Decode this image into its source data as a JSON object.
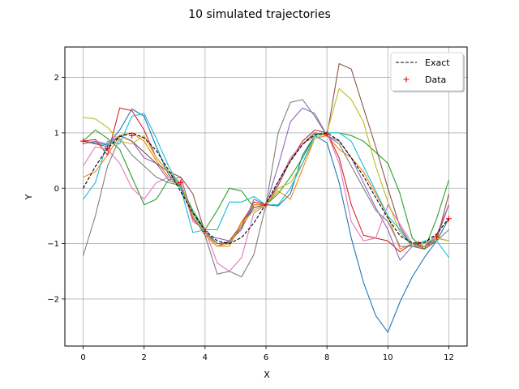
{
  "chart_data": {
    "type": "line",
    "title": "10 simulated trajectories",
    "xlabel": "X",
    "ylabel": "Y",
    "xlim": [
      -0.6,
      12.6
    ],
    "ylim": [
      -2.85,
      2.55
    ],
    "xticks": [
      0,
      2,
      4,
      6,
      8,
      10,
      12
    ],
    "yticks": [
      -2,
      -1,
      0,
      1,
      2
    ],
    "ytick_labels": [
      "−2",
      "−1",
      "0",
      "1",
      "2"
    ],
    "grid": true,
    "legend_position": "top-right",
    "legend": [
      {
        "label": "Exact",
        "style": "dashed-line",
        "color": "#000000"
      },
      {
        "label": "Data",
        "style": "plus-marker",
        "color": "#ff0000"
      }
    ],
    "exact": {
      "name": "Exact",
      "color": "#000000",
      "x": [
        0,
        0.4,
        0.8,
        1.2,
        1.6,
        2.0,
        2.4,
        2.8,
        3.2,
        3.6,
        4.0,
        4.4,
        4.8,
        5.2,
        5.6,
        6.0,
        6.4,
        6.8,
        7.2,
        7.6,
        8.0,
        8.4,
        8.8,
        9.2,
        9.6,
        10.0,
        10.4,
        10.8,
        11.2,
        11.6,
        12.0
      ],
      "y": [
        0.0,
        0.39,
        0.72,
        0.93,
        1.0,
        0.91,
        0.68,
        0.33,
        -0.06,
        -0.44,
        -0.76,
        -0.95,
        -1.0,
        -0.89,
        -0.63,
        -0.28,
        0.12,
        0.49,
        0.79,
        0.97,
        1.0,
        0.86,
        0.55,
        0.22,
        -0.17,
        -0.54,
        -0.86,
        -0.99,
        -0.98,
        -0.83,
        -0.54
      ]
    },
    "data_points": {
      "name": "Data",
      "color": "#ff0000",
      "x": [
        0,
        0.8,
        1.6,
        3.2,
        4.0,
        6.0,
        8.0,
        11.0,
        11.6,
        12.0
      ],
      "y": [
        0.85,
        0.72,
        0.95,
        0.1,
        -0.78,
        -0.3,
        0.98,
        -1.0,
        -0.88,
        -0.55
      ]
    },
    "trajectories": [
      {
        "color": "#1f77b4",
        "x": [
          0,
          0.4,
          0.8,
          1.2,
          1.6,
          2.0,
          2.4,
          2.8,
          3.2,
          3.6,
          4.0,
          4.4,
          4.8,
          5.2,
          5.6,
          6.0,
          6.4,
          6.8,
          7.2,
          7.6,
          8.0,
          8.4,
          8.8,
          9.2,
          9.6,
          10.0,
          10.4,
          10.8,
          11.2,
          11.6,
          12.0
        ],
        "y": [
          0.85,
          0.82,
          0.78,
          1.05,
          1.43,
          1.3,
          0.75,
          0.25,
          0.0,
          -0.45,
          -0.78,
          -1.0,
          -0.98,
          -0.7,
          -0.3,
          -0.3,
          -0.32,
          -0.1,
          0.6,
          0.95,
          0.82,
          0.1,
          -0.9,
          -1.7,
          -2.3,
          -2.6,
          -2.05,
          -1.6,
          -1.25,
          -0.95,
          -0.55
        ]
      },
      {
        "color": "#ff7f0e",
        "x": [
          0,
          0.4,
          0.8,
          1.2,
          1.6,
          2.0,
          2.4,
          2.8,
          3.2,
          3.6,
          4.0,
          4.4,
          4.8,
          5.2,
          5.6,
          6.0,
          6.4,
          6.8,
          7.2,
          7.6,
          8.0,
          8.4,
          8.8,
          9.2,
          9.6,
          10.0,
          10.4,
          10.8,
          11.2,
          11.6,
          12.0
        ],
        "y": [
          0.2,
          0.3,
          0.6,
          0.95,
          1.0,
          0.85,
          0.5,
          0.2,
          0.05,
          -0.5,
          -0.85,
          -1.05,
          -1.05,
          -0.6,
          -0.3,
          -0.3,
          -0.05,
          -0.2,
          0.35,
          0.9,
          0.95,
          0.7,
          0.55,
          0.3,
          -0.1,
          -0.5,
          -1.1,
          -1.0,
          -1.1,
          -0.9,
          -0.95
        ]
      },
      {
        "color": "#2ca02c",
        "x": [
          0,
          0.4,
          0.8,
          1.2,
          1.6,
          2.0,
          2.4,
          2.8,
          3.2,
          3.6,
          4.0,
          4.4,
          4.8,
          5.2,
          5.6,
          6.0,
          6.4,
          6.8,
          7.2,
          7.6,
          8.0,
          8.4,
          8.8,
          9.2,
          9.6,
          10.0,
          10.4,
          10.8,
          11.2,
          11.6,
          12.0
        ],
        "y": [
          0.85,
          1.05,
          0.9,
          0.7,
          0.2,
          -0.3,
          -0.2,
          0.15,
          0.05,
          -0.4,
          -0.75,
          -0.4,
          0.0,
          -0.05,
          -0.35,
          -0.3,
          -0.1,
          0.2,
          0.55,
          0.95,
          1.0,
          1.0,
          0.95,
          0.85,
          0.65,
          0.45,
          -0.1,
          -0.9,
          -1.1,
          -0.55,
          0.15
        ]
      },
      {
        "color": "#d62728",
        "x": [
          0,
          0.4,
          0.8,
          1.2,
          1.6,
          2.0,
          2.4,
          2.8,
          3.2,
          3.6,
          4.0,
          4.4,
          4.8,
          5.2,
          5.6,
          6.0,
          6.4,
          6.8,
          7.2,
          7.6,
          8.0,
          8.4,
          8.8,
          9.2,
          9.6,
          10.0,
          10.4,
          10.8,
          11.2,
          11.6,
          12.0
        ],
        "y": [
          0.85,
          0.88,
          0.6,
          1.45,
          1.4,
          1.05,
          0.55,
          0.3,
          0.05,
          -0.55,
          -0.8,
          -1.05,
          -0.95,
          -0.65,
          -0.25,
          -0.3,
          0.05,
          0.5,
          0.85,
          1.05,
          1.0,
          0.55,
          -0.3,
          -0.85,
          -0.9,
          -0.95,
          -1.15,
          -1.0,
          -1.05,
          -0.9,
          -0.3
        ]
      },
      {
        "color": "#9467bd",
        "x": [
          0,
          0.4,
          0.8,
          1.2,
          1.6,
          2.0,
          2.4,
          2.8,
          3.2,
          3.6,
          4.0,
          4.4,
          4.8,
          5.2,
          5.6,
          6.0,
          6.4,
          6.8,
          7.2,
          7.6,
          8.0,
          8.4,
          8.8,
          9.2,
          9.6,
          10.0,
          10.4,
          10.8,
          11.2,
          11.6,
          12.0
        ],
        "y": [
          0.8,
          0.85,
          0.8,
          0.95,
          0.85,
          0.55,
          0.45,
          0.15,
          0.2,
          -0.5,
          -0.85,
          -0.9,
          -0.95,
          -0.75,
          -0.2,
          -0.3,
          0.4,
          1.2,
          1.45,
          1.35,
          0.95,
          0.85,
          0.55,
          0.1,
          -0.35,
          -0.75,
          -1.3,
          -1.05,
          -1.05,
          -0.85,
          -0.3
        ]
      },
      {
        "color": "#8c564b",
        "x": [
          0,
          0.4,
          0.8,
          1.2,
          1.6,
          2.0,
          2.4,
          2.8,
          3.2,
          3.6,
          4.0,
          4.4,
          4.8,
          5.2,
          5.6,
          6.0,
          6.4,
          6.8,
          7.2,
          7.6,
          8.0,
          8.4,
          8.8,
          9.2,
          9.6,
          10.0,
          10.4,
          10.8,
          11.2,
          11.6,
          12.0
        ],
        "y": [
          0.85,
          0.8,
          0.75,
          0.95,
          0.85,
          0.65,
          0.45,
          0.3,
          0.2,
          -0.1,
          -0.8,
          -1.0,
          -1.0,
          -0.7,
          -0.35,
          -0.3,
          0.05,
          0.5,
          0.8,
          1.0,
          0.95,
          2.25,
          2.15,
          1.45,
          0.75,
          0.0,
          -0.7,
          -1.05,
          -1.1,
          -0.95,
          -0.1
        ]
      },
      {
        "color": "#e377c2",
        "x": [
          0,
          0.4,
          0.8,
          1.2,
          1.6,
          2.0,
          2.4,
          2.8,
          3.2,
          3.6,
          4.0,
          4.4,
          4.8,
          5.2,
          5.6,
          6.0,
          6.4,
          6.8,
          7.2,
          7.6,
          8.0,
          8.4,
          8.8,
          9.2,
          9.6,
          10.0,
          10.4,
          10.8,
          11.2,
          11.6,
          12.0
        ],
        "y": [
          0.4,
          0.75,
          0.7,
          0.45,
          0.0,
          -0.2,
          0.1,
          0.2,
          0.1,
          -0.6,
          -0.75,
          -1.35,
          -1.5,
          -1.25,
          -0.45,
          -0.3,
          0.1,
          0.55,
          0.8,
          0.95,
          1.0,
          0.45,
          -0.6,
          -0.95,
          -0.9,
          -0.3,
          -0.65,
          -1.0,
          -1.0,
          -0.9,
          -0.95
        ]
      },
      {
        "color": "#7f7f7f",
        "x": [
          0,
          0.4,
          0.8,
          1.2,
          1.6,
          2.0,
          2.4,
          2.8,
          3.2,
          3.6,
          4.0,
          4.4,
          4.8,
          5.2,
          5.6,
          6.0,
          6.4,
          6.8,
          7.2,
          7.6,
          8.0,
          8.4,
          8.8,
          9.2,
          9.6,
          10.0,
          10.4,
          10.8,
          11.2,
          11.6,
          12.0
        ],
        "y": [
          -1.22,
          -0.5,
          0.4,
          0.9,
          0.6,
          0.4,
          0.2,
          0.1,
          0.05,
          -0.5,
          -0.85,
          -1.55,
          -1.5,
          -1.6,
          -1.2,
          -0.3,
          1.0,
          1.55,
          1.6,
          1.3,
          0.95,
          0.8,
          0.4,
          0.0,
          -0.4,
          -0.6,
          -1.05,
          -1.05,
          -1.05,
          -0.95,
          -0.75
        ]
      },
      {
        "color": "#bcbd22",
        "x": [
          0,
          0.4,
          0.8,
          1.2,
          1.6,
          2.0,
          2.4,
          2.8,
          3.2,
          3.6,
          4.0,
          4.4,
          4.8,
          5.2,
          5.6,
          6.0,
          6.4,
          6.8,
          7.2,
          7.6,
          8.0,
          8.4,
          8.8,
          9.2,
          9.6,
          10.0,
          10.4,
          10.8,
          11.2,
          11.6,
          12.0
        ],
        "y": [
          1.28,
          1.25,
          1.1,
          0.85,
          0.8,
          0.95,
          0.55,
          0.3,
          0.1,
          -0.5,
          -0.8,
          -1.05,
          -1.0,
          -0.65,
          -0.4,
          -0.3,
          0.0,
          0.1,
          0.45,
          0.9,
          1.0,
          1.8,
          1.6,
          1.2,
          0.4,
          -0.25,
          -0.8,
          -1.05,
          -1.0,
          -0.9,
          -0.95
        ]
      },
      {
        "color": "#17becf",
        "x": [
          0,
          0.4,
          0.8,
          1.2,
          1.6,
          2.0,
          2.4,
          2.8,
          3.2,
          3.6,
          4.0,
          4.4,
          4.8,
          5.2,
          5.6,
          6.0,
          6.4,
          6.8,
          7.2,
          7.6,
          8.0,
          8.4,
          8.8,
          9.2,
          9.6,
          10.0,
          10.4,
          10.8,
          11.2,
          11.6,
          12.0
        ],
        "y": [
          -0.2,
          0.1,
          0.85,
          0.8,
          1.3,
          1.35,
          0.9,
          0.4,
          0.0,
          -0.8,
          -0.75,
          -0.75,
          -0.25,
          -0.25,
          -0.15,
          -0.3,
          -0.3,
          0.0,
          0.45,
          0.95,
          1.0,
          1.0,
          0.85,
          0.4,
          -0.05,
          -0.5,
          -0.75,
          -1.05,
          -0.95,
          -0.95,
          -1.25
        ]
      }
    ]
  }
}
